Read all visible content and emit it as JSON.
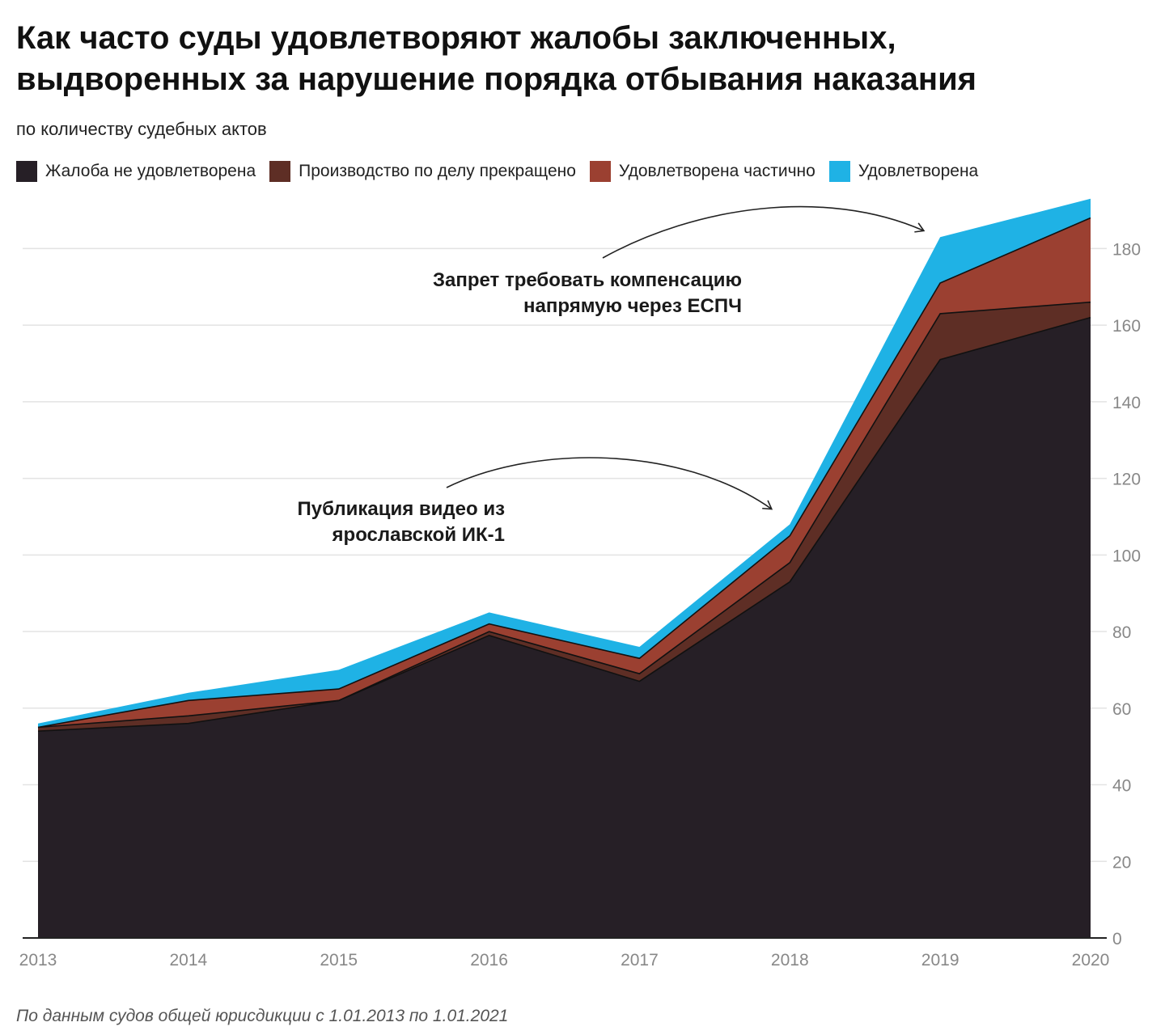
{
  "header": {
    "title_line1": "Как часто суды удовлетворяют жалобы заключенных,",
    "title_line2": "выдворенных за нарушение порядка отбывания наказания",
    "subtitle": "по количеству судебных актов"
  },
  "legend": [
    {
      "label": "Жалоба не удовлетворена",
      "color": "#261f26"
    },
    {
      "label": "Производство по делу прекращено",
      "color": "#5e2e25"
    },
    {
      "label": "Удовлетворена частично",
      "color": "#9b4031"
    },
    {
      "label": "Удовлетворена",
      "color": "#1fb2e5"
    }
  ],
  "annotations": [
    {
      "line1": "Запрет требовать компенсацию",
      "line2": "напрямую через ЕСПЧ"
    },
    {
      "line1": "Публикация видео из",
      "line2": "ярославской ИК-1"
    }
  ],
  "footnote": "По данным судов общей юрисдикции с 1.01.2013 по 1.01.2021",
  "chart_data": {
    "type": "area",
    "stacked": true,
    "categories": [
      "2013",
      "2014",
      "2015",
      "2016",
      "2017",
      "2018",
      "2019",
      "2020"
    ],
    "series": [
      {
        "name": "Жалоба не удовлетворена",
        "color": "#261f26",
        "values": [
          54,
          56,
          62,
          79,
          67,
          93,
          151,
          162
        ]
      },
      {
        "name": "Производство по делу прекращено",
        "color": "#5e2e25",
        "values": [
          1,
          2,
          0,
          1,
          2,
          5,
          12,
          4
        ]
      },
      {
        "name": "Удовлетворена частично",
        "color": "#9b4031",
        "values": [
          0,
          4,
          3,
          2,
          4,
          7,
          8,
          22
        ]
      },
      {
        "name": "Удовлетворена",
        "color": "#1fb2e5",
        "values": [
          1,
          2,
          5,
          3,
          3,
          3,
          12,
          5
        ]
      }
    ],
    "ylim": [
      0,
      190
    ],
    "yticks": [
      0,
      20,
      40,
      60,
      80,
      100,
      120,
      140,
      160,
      180
    ],
    "y_axis_side": "right",
    "grid": true,
    "title": "Как часто суды удовлетворяют жалобы заключенных, выдворенных за нарушение порядка отбывания наказания",
    "subtitle": "по количеству судебных актов"
  }
}
